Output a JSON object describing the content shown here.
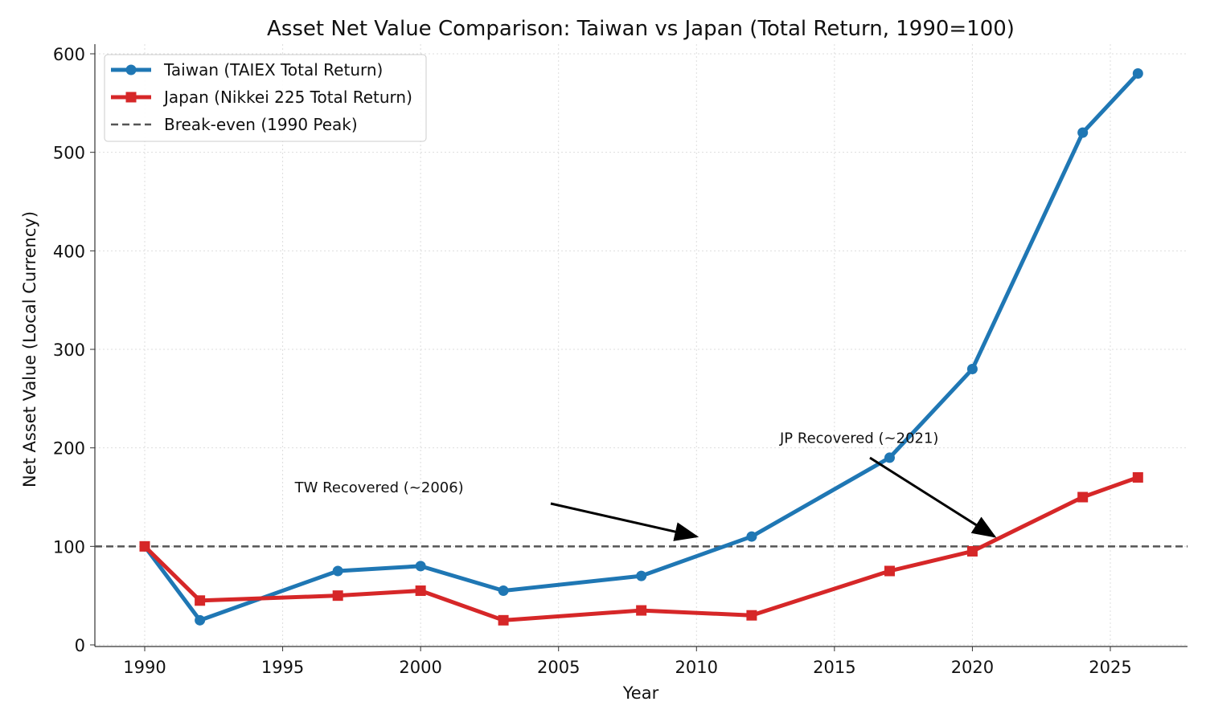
{
  "chart_data": {
    "type": "line",
    "title": "Asset Net Value Comparison: Taiwan vs Japan (Total Return, 1990=100)",
    "xlabel": "Year",
    "ylabel": "Net Asset Value (Local Currency)",
    "xlim": [
      1988.2,
      2027.8
    ],
    "ylim": [
      0,
      600
    ],
    "xticks": [
      1990,
      1995,
      2000,
      2005,
      2010,
      2015,
      2020,
      2025
    ],
    "yticks": [
      0,
      100,
      200,
      300,
      400,
      500,
      600
    ],
    "grid": true,
    "legend_position": "top-left",
    "series": [
      {
        "name": "Taiwan (TAIEX Total Return)",
        "color": "#1f77b4",
        "marker": "circle",
        "x": [
          1990,
          1992,
          1997,
          2000,
          2003,
          2008,
          2012,
          2017,
          2020,
          2024,
          2026
        ],
        "y": [
          100,
          25,
          75,
          80,
          55,
          70,
          110,
          190,
          280,
          520,
          580
        ]
      },
      {
        "name": "Japan (Nikkei 225 Total Return)",
        "color": "#d62728",
        "marker": "square",
        "x": [
          1990,
          1992,
          1997,
          2000,
          2003,
          2008,
          2012,
          2017,
          2020,
          2024,
          2026
        ],
        "y": [
          100,
          45,
          50,
          55,
          25,
          35,
          30,
          75,
          95,
          150,
          170
        ]
      }
    ],
    "hlines": [
      {
        "name": "Break-even (1990 Peak)",
        "y": 100,
        "color": "#555555",
        "style": "dashed"
      }
    ],
    "annotations": [
      {
        "text": "TW Recovered (~2006)",
        "text_at": [
          1998.5,
          155
        ],
        "point_at": [
          2010,
          110
        ]
      },
      {
        "text": "JP Recovered (~2021)",
        "text_at": [
          2015.9,
          205
        ],
        "point_at": [
          2020.8,
          110
        ]
      }
    ]
  }
}
